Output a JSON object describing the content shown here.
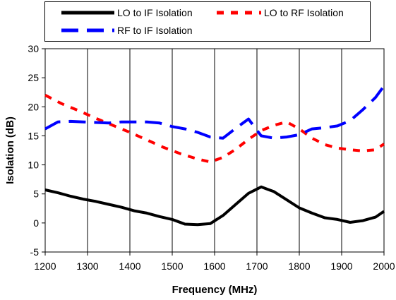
{
  "chart_data": {
    "type": "line",
    "title": "",
    "xlabel": "Frequency (MHz)",
    "ylabel": "Isolation (dB)",
    "xlim": [
      1200,
      2000
    ],
    "ylim": [
      -5,
      30
    ],
    "x_ticks": [
      1200,
      1300,
      1400,
      1500,
      1600,
      1700,
      1800,
      1900,
      2000
    ],
    "y_ticks": [
      -5,
      0,
      5,
      10,
      15,
      20,
      25,
      30
    ],
    "grid": "vertical",
    "legend_position": "top",
    "series": [
      {
        "name": "LO to IF Isolation",
        "color": "#000000",
        "style": "solid",
        "x": [
          1200,
          1230,
          1260,
          1290,
          1320,
          1350,
          1380,
          1410,
          1440,
          1470,
          1500,
          1530,
          1560,
          1590,
          1620,
          1650,
          1680,
          1710,
          1740,
          1770,
          1800,
          1830,
          1860,
          1890,
          1920,
          1950,
          1980,
          2000
        ],
        "y": [
          5.7,
          5.2,
          4.6,
          4.1,
          3.7,
          3.2,
          2.7,
          2.1,
          1.7,
          1.1,
          0.6,
          -0.2,
          -0.3,
          -0.1,
          1.3,
          3.2,
          5.1,
          6.2,
          5.4,
          4.0,
          2.6,
          1.7,
          0.9,
          0.6,
          0.1,
          0.4,
          1.0,
          2.0
        ]
      },
      {
        "name": "LO to RF Isolation",
        "color": "#ff0000",
        "style": "dotted",
        "x": [
          1200,
          1240,
          1280,
          1320,
          1360,
          1400,
          1440,
          1480,
          1520,
          1560,
          1590,
          1620,
          1650,
          1680,
          1710,
          1740,
          1770,
          1800,
          1830,
          1860,
          1890,
          1920,
          1950,
          1980,
          2000
        ],
        "y": [
          22.0,
          20.5,
          19.3,
          18.0,
          16.8,
          15.6,
          14.3,
          13.0,
          11.9,
          11.0,
          10.5,
          11.3,
          12.7,
          14.4,
          15.9,
          16.8,
          17.4,
          16.2,
          14.6,
          13.5,
          12.9,
          12.6,
          12.4,
          12.6,
          13.6
        ]
      },
      {
        "name": "RF to IF Isolation",
        "color": "#0000ff",
        "style": "dashed",
        "x": [
          1200,
          1230,
          1260,
          1290,
          1320,
          1350,
          1380,
          1410,
          1440,
          1470,
          1500,
          1530,
          1560,
          1590,
          1620,
          1650,
          1680,
          1710,
          1740,
          1770,
          1800,
          1830,
          1860,
          1890,
          1920,
          1950,
          1980,
          2000
        ],
        "y": [
          16.2,
          17.4,
          17.5,
          17.4,
          17.3,
          17.2,
          17.4,
          17.4,
          17.4,
          17.2,
          16.6,
          16.2,
          15.6,
          14.8,
          14.6,
          16.3,
          17.9,
          15.0,
          14.6,
          14.8,
          15.2,
          16.2,
          16.4,
          16.7,
          17.6,
          19.5,
          21.6,
          23.6
        ]
      }
    ]
  }
}
